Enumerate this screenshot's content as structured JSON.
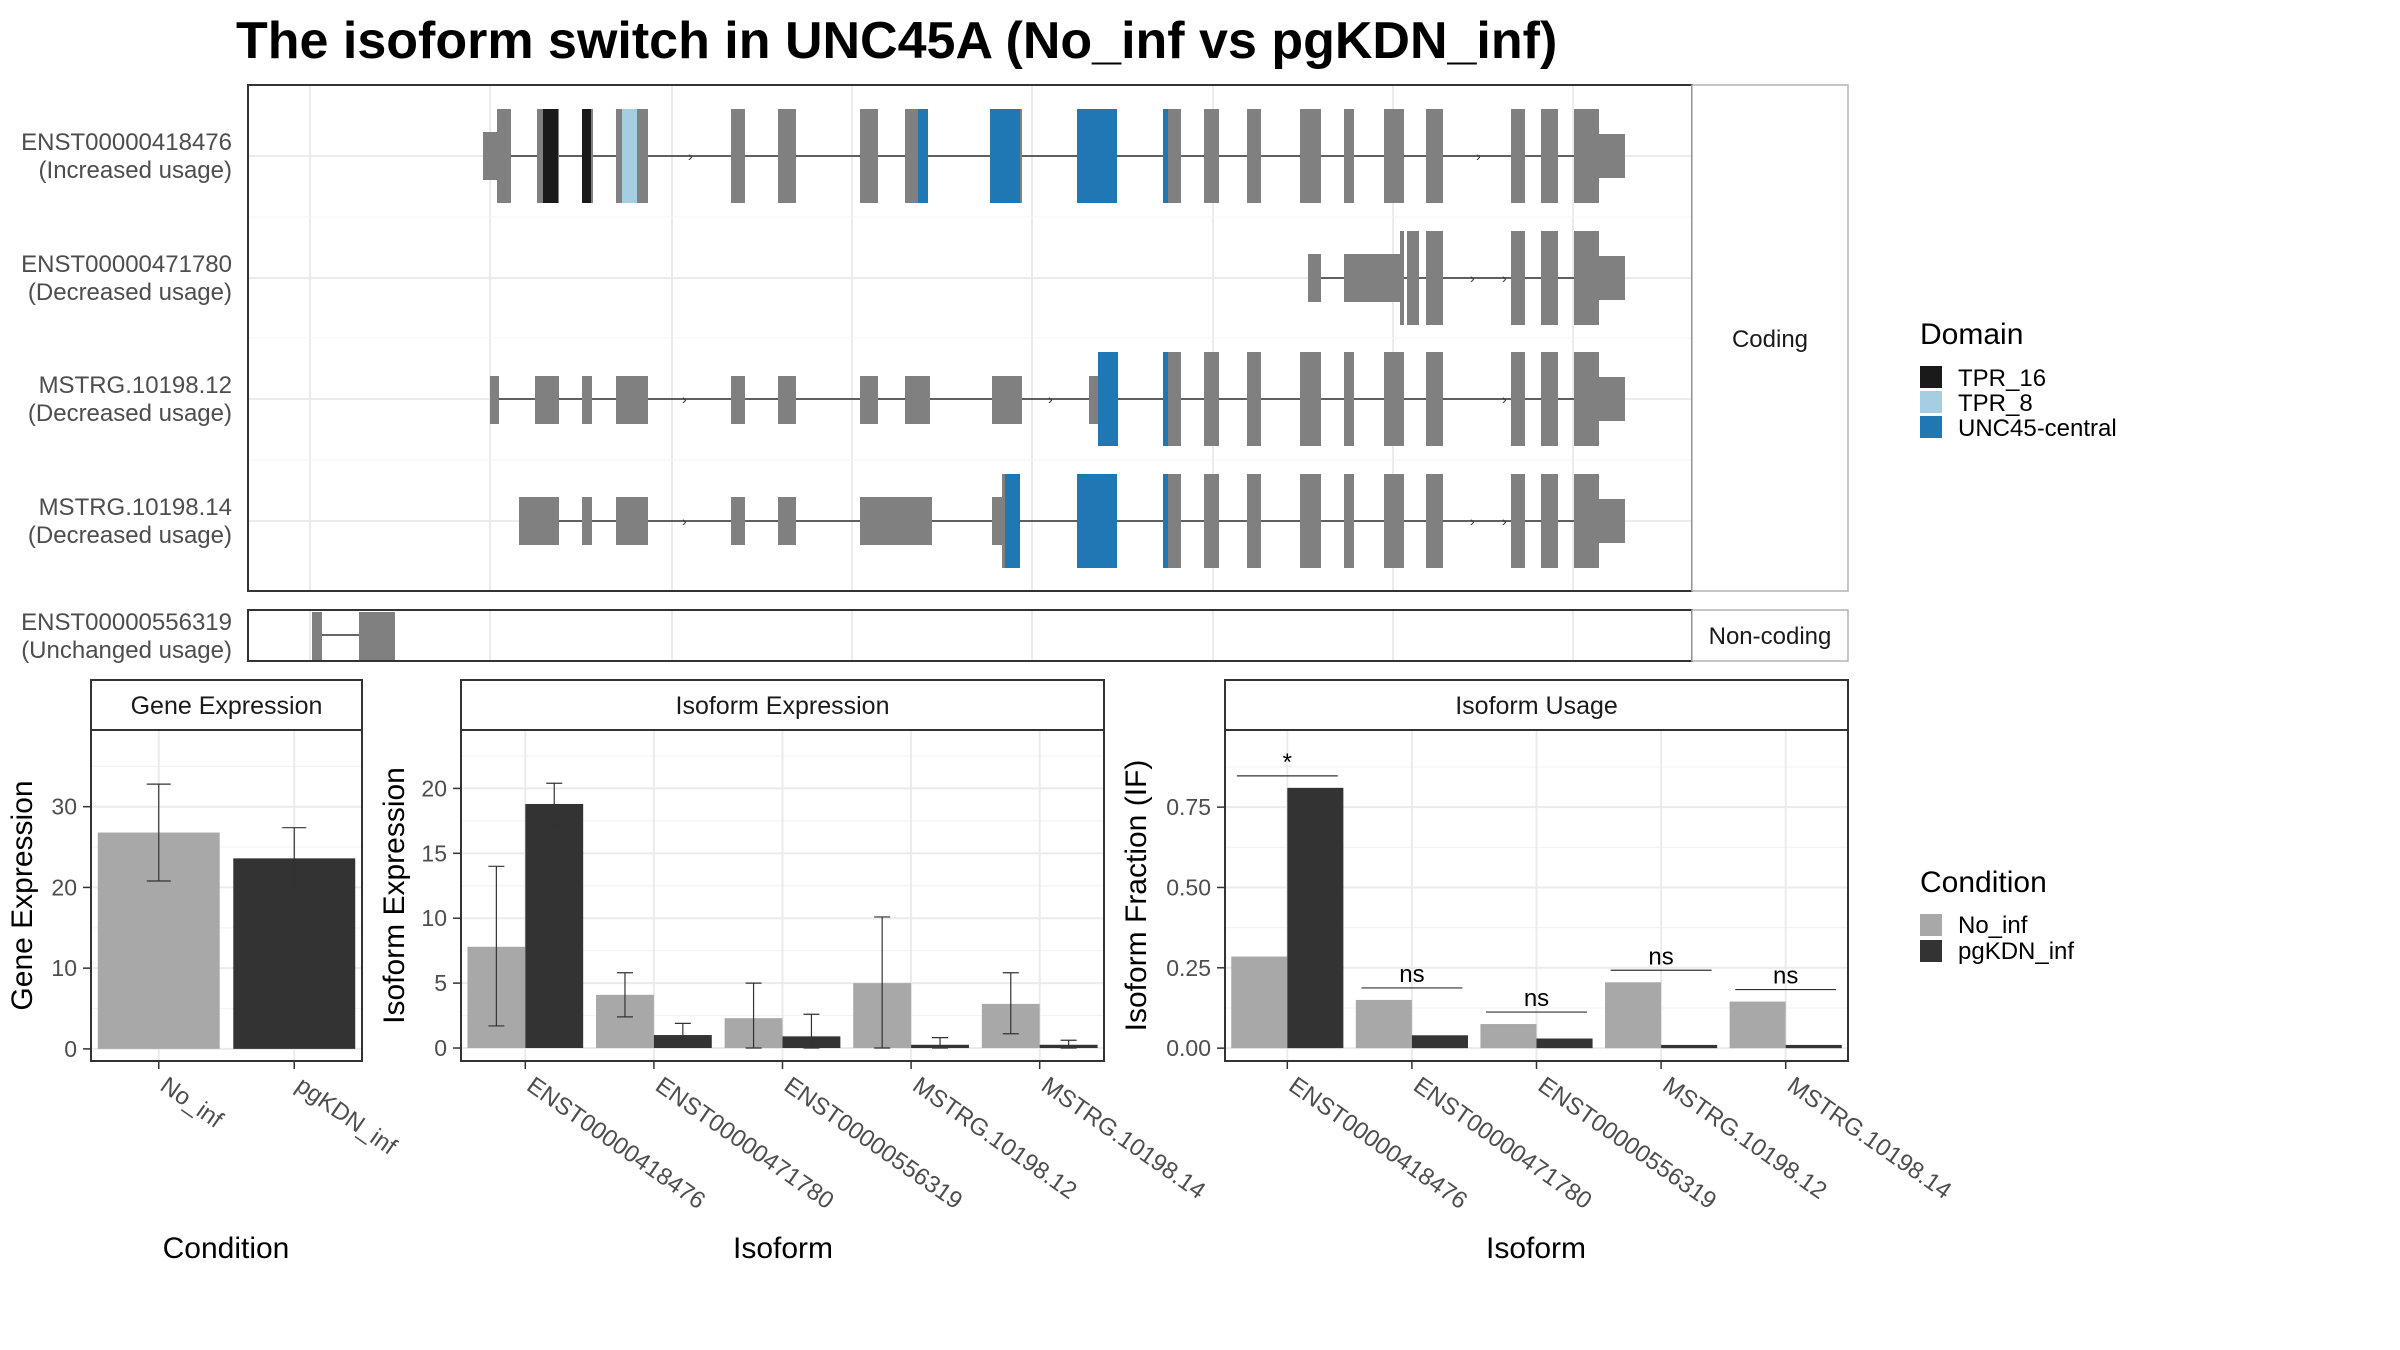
{
  "title": "The isoform switch in UNC45A (No_inf vs pgKDN_inf)",
  "colors": {
    "exon": "#808080",
    "TPR_16": "#1a1a1a",
    "TPR_8": "#a6cee3",
    "UNC45-central": "#1f78b4",
    "No_inf": "#a8a8a8",
    "pgKDN_inf": "#333333"
  },
  "structure": {
    "strip_coding": "Coding",
    "strip_noncoding": "Non-coding",
    "transcripts": [
      {
        "id": "ENST00000418476",
        "usage": "(Increased usage)"
      },
      {
        "id": "ENST00000471780",
        "usage": "(Decreased usage)"
      },
      {
        "id": "MSTRG.10198.12",
        "usage": "(Decreased usage)"
      },
      {
        "id": "MSTRG.10198.14",
        "usage": "(Decreased usage)"
      },
      {
        "id": "ENST00000556319",
        "usage": "(Unchanged usage)"
      }
    ]
  },
  "legend_domain": {
    "title": "Domain",
    "items": [
      {
        "label": "TPR_16",
        "color": "#1a1a1a"
      },
      {
        "label": "TPR_8",
        "color": "#a6cee3"
      },
      {
        "label": "UNC45-central",
        "color": "#1f78b4"
      }
    ]
  },
  "legend_condition": {
    "title": "Condition",
    "items": [
      {
        "label": "No_inf",
        "color": "#a8a8a8"
      },
      {
        "label": "pgKDN_inf",
        "color": "#333333"
      }
    ]
  },
  "chart_data": [
    {
      "type": "bar",
      "title": "Gene Expression",
      "xlabel": "Condition",
      "ylabel": "Gene Expression",
      "categories": [
        "No_inf",
        "pgKDN_inf"
      ],
      "values": [
        26.8,
        23.6
      ],
      "error_low": [
        20.8,
        19.8
      ],
      "error_high": [
        32.8,
        27.4
      ],
      "ylim": [
        -1.5,
        39.5
      ],
      "yticks": [
        0,
        10,
        20,
        30
      ],
      "grid": true
    },
    {
      "type": "bar",
      "title": "Isoform Expression",
      "xlabel": "Isoform",
      "ylabel": "Isoform Expression",
      "categories": [
        "ENST00000418476",
        "ENST00000471780",
        "ENST00000556319",
        "MSTRG.10198.12",
        "MSTRG.10198.14"
      ],
      "series": [
        {
          "name": "No_inf",
          "values": [
            7.8,
            4.1,
            2.3,
            5.0,
            3.4
          ],
          "error_low": [
            1.7,
            2.4,
            0.0,
            0.0,
            1.1
          ],
          "error_high": [
            14.0,
            5.8,
            5.0,
            10.1,
            5.8
          ]
        },
        {
          "name": "pgKDN_inf",
          "values": [
            18.8,
            1.0,
            0.9,
            0.25,
            0.25
          ],
          "error_low": [
            17.2,
            0.2,
            0.0,
            0.0,
            0.0
          ],
          "error_high": [
            20.4,
            1.9,
            2.6,
            0.8,
            0.6
          ]
        }
      ],
      "ylim": [
        -1.0,
        24.5
      ],
      "yticks": [
        0,
        5,
        10,
        15,
        20
      ],
      "grid": true
    },
    {
      "type": "bar",
      "title": "Isoform Usage",
      "xlabel": "Isoform",
      "ylabel": "Isoform Fraction (IF)",
      "categories": [
        "ENST00000418476",
        "ENST00000471780",
        "ENST00000556319",
        "MSTRG.10198.12",
        "MSTRG.10198.14"
      ],
      "series": [
        {
          "name": "No_inf",
          "values": [
            0.285,
            0.15,
            0.075,
            0.205,
            0.145
          ]
        },
        {
          "name": "pgKDN_inf",
          "values": [
            0.81,
            0.04,
            0.03,
            0.01,
            0.01
          ]
        }
      ],
      "significance": [
        "*",
        "ns",
        "ns",
        "ns",
        "ns"
      ],
      "ylim": [
        -0.04,
        0.99
      ],
      "yticks": [
        0.0,
        0.25,
        0.5,
        0.75
      ],
      "ytick_labels": [
        "0.00",
        "0.25",
        "0.50",
        "0.75"
      ],
      "grid": true
    }
  ]
}
